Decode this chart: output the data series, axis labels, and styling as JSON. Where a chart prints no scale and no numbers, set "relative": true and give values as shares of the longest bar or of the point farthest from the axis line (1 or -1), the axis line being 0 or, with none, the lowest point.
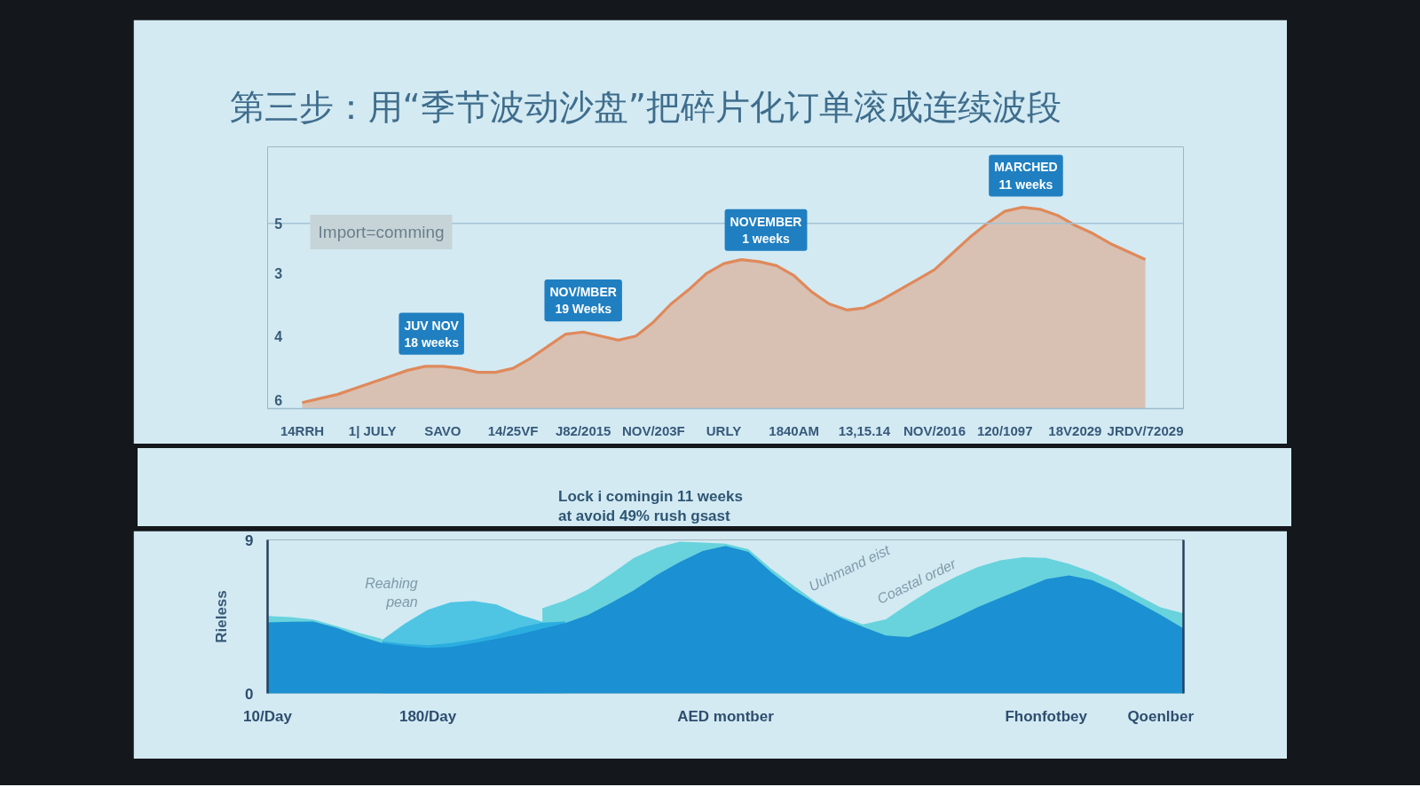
{
  "chart_data": [
    {
      "type": "area",
      "title": "第三步：用“季节波动沙盘”把碎片化订单滚成连续波段",
      "relative": true,
      "categories": [
        "14RRH",
        null,
        null,
        null,
        "1| JULY",
        null,
        null,
        null,
        "SAVO",
        null,
        null,
        null,
        "14/25VF",
        null,
        null,
        null,
        "J82/2015",
        null,
        null,
        null,
        "NOV/203F",
        null,
        null,
        null,
        "URLY",
        null,
        null,
        null,
        "1840AM",
        null,
        null,
        null,
        "13,15.14",
        null,
        null,
        null,
        "NOV/2016",
        null,
        null,
        null,
        "120/1097",
        null,
        null,
        null,
        "18V2029",
        null,
        null,
        null,
        "JRDV/72029"
      ],
      "series": [
        {
          "color": "#e0895b",
          "values": [
            0.03,
            0.05,
            0.07,
            0.1,
            0.13,
            0.16,
            0.19,
            0.21,
            0.21,
            0.2,
            0.18,
            0.18,
            0.2,
            0.25,
            0.31,
            0.37,
            0.38,
            0.36,
            0.34,
            0.36,
            0.43,
            0.52,
            0.59,
            0.67,
            0.72,
            0.74,
            0.73,
            0.71,
            0.66,
            0.58,
            0.52,
            0.49,
            0.5,
            0.54,
            0.59,
            0.64,
            0.69,
            0.77,
            0.85,
            0.92,
            0.98,
            1.0,
            0.99,
            0.96,
            0.91,
            0.87,
            0.82,
            0.78,
            0.74
          ]
        }
      ],
      "line_style": "solid",
      "ref_lines": [
        {
          "axis": "y",
          "value": 0.92,
          "color": "#a3c3d5"
        }
      ],
      "annotations": [
        "5",
        "3",
        "4",
        "6",
        "Import=comming",
        "JUV NOV\n18 weeks",
        "NOV/MBER\n19 Weeks",
        "NOVEMBER\n1 weeks",
        "MARCHED\n11 weeks"
      ]
    },
    {
      "type": "area",
      "ylabel": "Rieless",
      "categories": [
        "10/Day",
        null,
        null,
        null,
        null,
        null,
        null,
        "180/Day",
        null,
        null,
        null,
        null,
        null,
        null,
        null,
        null,
        null,
        null,
        null,
        null,
        "AED montber",
        null,
        null,
        null,
        null,
        null,
        null,
        null,
        null,
        null,
        null,
        null,
        null,
        null,
        "Fhonfotbey",
        null,
        null,
        null,
        null,
        "Qoenlber",
        null
      ],
      "series": [
        {
          "color": "#68d3dc",
          "values": [
            4.54,
            4.48,
            4.33,
            3.95,
            3.55,
            3.2,
            null,
            null,
            null,
            null,
            null,
            null,
            5.0,
            5.45,
            6.1,
            7.0,
            7.95,
            8.55,
            8.9,
            8.85,
            8.78,
            8.45,
            7.3,
            6.3,
            5.3,
            4.55,
            4.05,
            4.35,
            5.25,
            6.1,
            6.8,
            7.4,
            7.8,
            7.98,
            7.95,
            7.6,
            7.11,
            6.5,
            5.75,
            5.05,
            4.69
          ]
        },
        {
          "color": "#4fc5e3",
          "values": [
            null,
            null,
            null,
            null,
            null,
            3.13,
            4.1,
            4.9,
            5.35,
            5.42,
            5.22,
            4.62,
            4.2,
            null,
            null,
            null,
            null,
            null,
            null,
            null,
            null,
            null,
            null,
            null,
            null,
            null,
            null,
            null,
            null,
            null,
            null,
            null,
            null,
            null,
            null,
            null,
            null,
            null,
            null,
            null,
            null
          ]
        },
        {
          "color": "#2bade0",
          "values": [
            null,
            null,
            null,
            null,
            null,
            3.05,
            2.9,
            2.82,
            2.95,
            3.15,
            3.45,
            3.85,
            4.15,
            4.22,
            null,
            null,
            null,
            null,
            null,
            null,
            null,
            null,
            null,
            null,
            null,
            null,
            null,
            null,
            null,
            null,
            null,
            null,
            null,
            null,
            null,
            null,
            null,
            null,
            null,
            null,
            null
          ]
        },
        {
          "color": "#1b90d2",
          "values": [
            4.16,
            4.2,
            4.22,
            3.85,
            3.35,
            2.95,
            2.78,
            2.66,
            2.72,
            2.95,
            3.2,
            3.46,
            3.8,
            4.12,
            4.6,
            5.3,
            6.05,
            6.95,
            7.7,
            8.35,
            8.65,
            8.3,
            7.1,
            6.05,
            5.2,
            4.45,
            3.9,
            3.4,
            3.3,
            3.8,
            4.4,
            5.05,
            5.6,
            6.15,
            6.7,
            6.92,
            6.65,
            6.05,
            5.35,
            4.6,
            3.81
          ]
        }
      ],
      "ylim": [
        0,
        9
      ],
      "yticks": [
        0,
        9
      ],
      "annotations": [
        "Lock i comingin 11 weeks\nat avoid 49% rush gsast",
        "Reahing\npean",
        "Uuhmand eist",
        "Coastal order"
      ]
    }
  ]
}
